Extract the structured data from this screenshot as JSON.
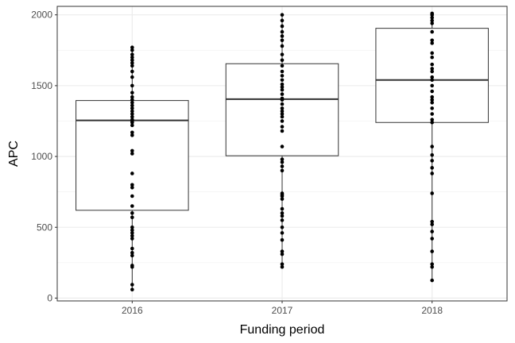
{
  "chart_data": {
    "type": "boxplot",
    "xlabel": "Funding period",
    "ylabel": "APC",
    "ylim": [
      -20,
      2060
    ],
    "y_ticks": [
      0,
      500,
      1000,
      1500,
      2000
    ],
    "y_minor_ticks": [
      250,
      750,
      1250,
      1750
    ],
    "grid": true,
    "categories": [
      "2016",
      "2017",
      "2018"
    ],
    "boxes": [
      {
        "category": "2016",
        "q1": 620,
        "median": 1255,
        "q3": 1395,
        "whisker_low": 60,
        "whisker_high": 1775
      },
      {
        "category": "2017",
        "q1": 1005,
        "median": 1405,
        "q3": 1655,
        "whisker_low": 220,
        "whisker_high": 2000
      },
      {
        "category": "2018",
        "q1": 1240,
        "median": 1540,
        "q3": 1905,
        "whisker_low": 125,
        "whisker_high": 2010
      }
    ],
    "points": [
      {
        "category": "2016",
        "values": [
          60,
          95,
          220,
          230,
          300,
          320,
          350,
          420,
          440,
          460,
          480,
          500,
          570,
          600,
          650,
          720,
          780,
          800,
          880,
          1020,
          1040,
          1150,
          1170,
          1220,
          1240,
          1250,
          1260,
          1280,
          1300,
          1320,
          1340,
          1360,
          1380,
          1400,
          1420,
          1450,
          1500,
          1560,
          1600,
          1640,
          1660,
          1680,
          1700,
          1720,
          1750,
          1770
        ]
      },
      {
        "category": "2017",
        "values": [
          220,
          240,
          310,
          330,
          410,
          460,
          500,
          550,
          580,
          600,
          630,
          700,
          720,
          730,
          740,
          900,
          930,
          960,
          980,
          1070,
          1180,
          1210,
          1250,
          1280,
          1300,
          1320,
          1340,
          1370,
          1400,
          1410,
          1440,
          1470,
          1490,
          1510,
          1540,
          1570,
          1600,
          1640,
          1680,
          1720,
          1780,
          1820,
          1850,
          1880,
          1920,
          1960,
          2000
        ]
      },
      {
        "category": "2018",
        "values": [
          125,
          220,
          240,
          330,
          420,
          470,
          520,
          540,
          740,
          880,
          920,
          970,
          1010,
          1070,
          1240,
          1260,
          1300,
          1340,
          1380,
          1400,
          1420,
          1460,
          1500,
          1540,
          1560,
          1600,
          1620,
          1650,
          1700,
          1730,
          1800,
          1820,
          1880,
          1940,
          1960,
          1980,
          2000,
          2010
        ]
      }
    ]
  }
}
